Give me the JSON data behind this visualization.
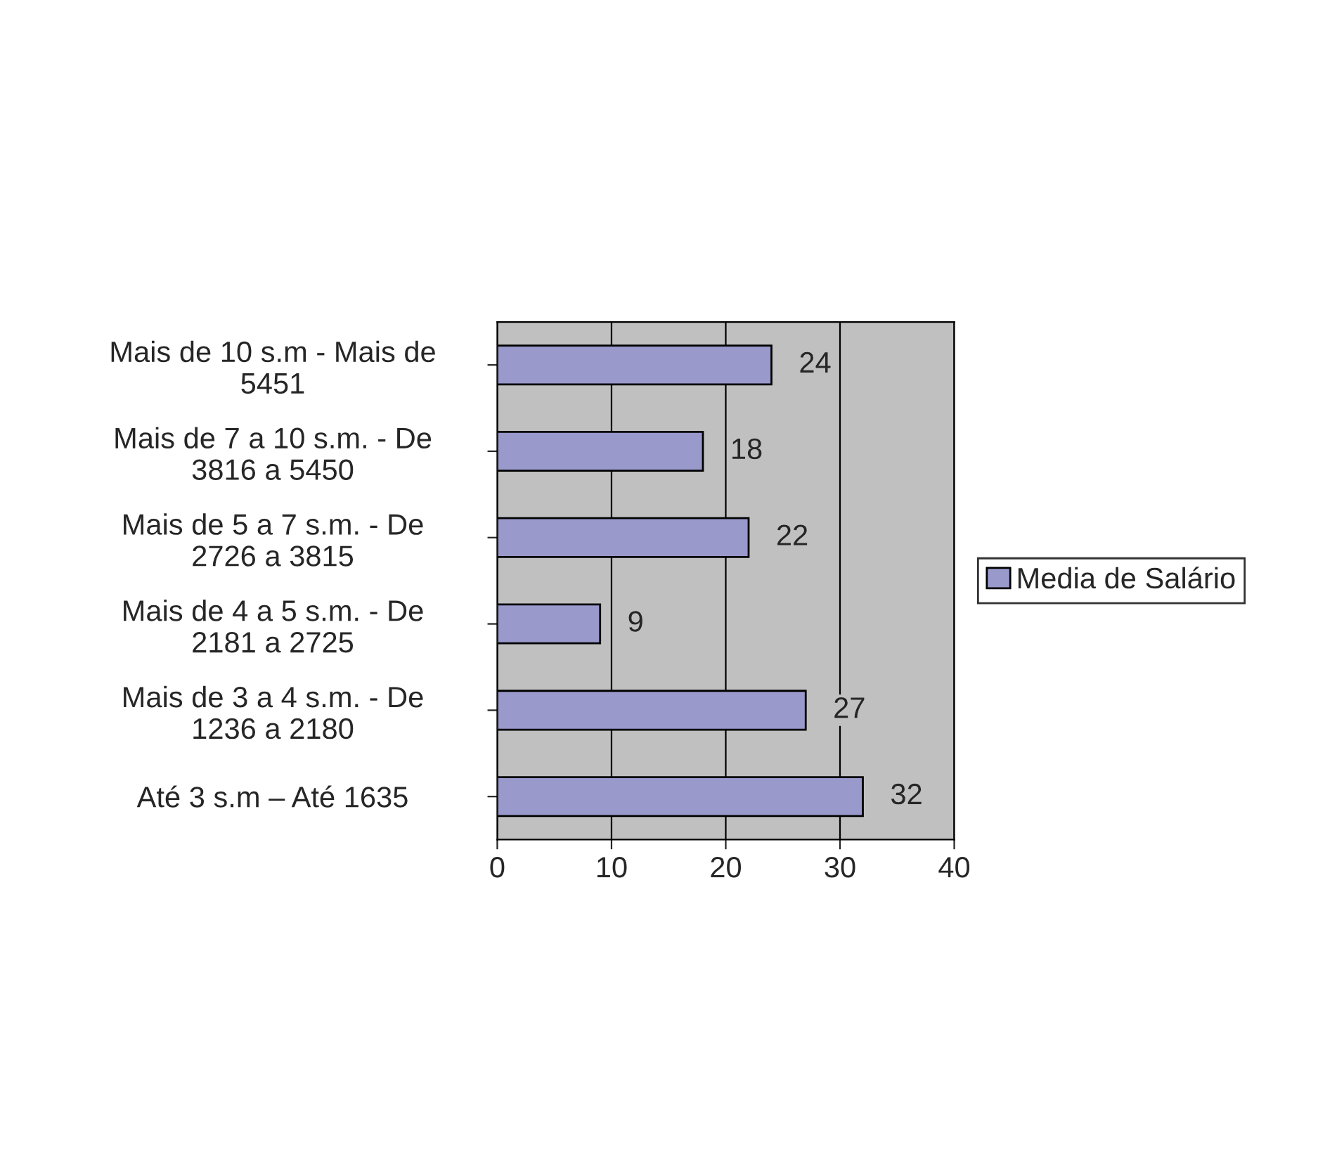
{
  "chart_data": {
    "type": "bar",
    "orientation": "horizontal",
    "categories": [
      "Mais de 10 s.m - Mais de\n5451",
      "Mais de 7 a 10 s.m. - De\n3816 a 5450",
      "Mais de 5 a 7 s.m. - De\n2726 a 3815",
      "Mais de 4 a 5 s.m. - De\n2181 a 2725",
      "Mais de 3 a 4 s.m. - De\n1236 a 2180",
      "Até 3 s.m – Até 1635"
    ],
    "series": [
      {
        "name": "Media de Salário",
        "color": "#9999cc",
        "values": [
          24,
          18,
          22,
          9,
          27,
          32
        ]
      }
    ],
    "xlim": [
      0,
      40
    ],
    "xticks": [
      0,
      10,
      20,
      30,
      40
    ],
    "grid": "x",
    "legend": "right",
    "data_labels": true
  }
}
